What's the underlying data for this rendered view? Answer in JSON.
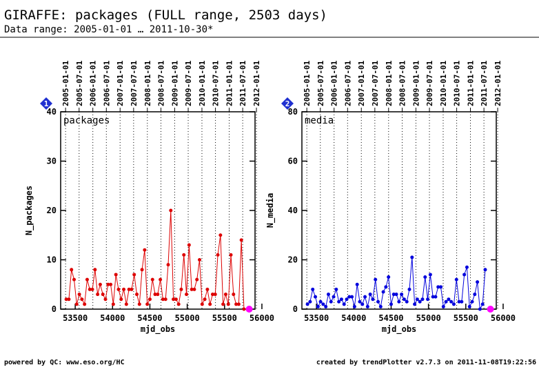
{
  "header": {
    "title": "GIRAFFE: packages (FULL range, 2503 days)",
    "subtitle": "Data range: 2005-01-01 … 2011-10-30*"
  },
  "footer": {
    "left": "powered by QC: www.eso.org/HC",
    "right": "created by trendPlotter v2.7.3 on 2011-11-08T19:22:56"
  },
  "chart_data": [
    {
      "type": "line",
      "badge": "1",
      "label": "packages",
      "xlabel": "mjd_obs",
      "ylabel": "N_packages",
      "color": "#dd0000",
      "xlim": [
        53305,
        55908
      ],
      "ylim": [
        0,
        40
      ],
      "xticks": [
        53500,
        54000,
        54500,
        55000,
        55500,
        56000
      ],
      "yticks": [
        0,
        10,
        20,
        30,
        40
      ],
      "x2ticks": [
        {
          "value": 53371,
          "label": "2005-01-01"
        },
        {
          "value": 53552,
          "label": "2005-07-01"
        },
        {
          "value": 53736,
          "label": "2006-01-01"
        },
        {
          "value": 53917,
          "label": "2006-07-01"
        },
        {
          "value": 54101,
          "label": "2007-01-01"
        },
        {
          "value": 54282,
          "label": "2007-07-01"
        },
        {
          "value": 54466,
          "label": "2008-01-01"
        },
        {
          "value": 54648,
          "label": "2008-07-01"
        },
        {
          "value": 54832,
          "label": "2009-01-01"
        },
        {
          "value": 55013,
          "label": "2009-07-01"
        },
        {
          "value": 55197,
          "label": "2010-01-01"
        },
        {
          "value": 55378,
          "label": "2010-07-01"
        },
        {
          "value": 55562,
          "label": "2011-01-01"
        },
        {
          "value": 55743,
          "label": "2011-07-01"
        },
        {
          "value": 55927,
          "label": "2012-01-01"
        }
      ],
      "x": [
        53380,
        53415,
        53450,
        53485,
        53520,
        53555,
        53590,
        53625,
        53660,
        53695,
        53730,
        53765,
        53800,
        53835,
        53870,
        53905,
        53940,
        53975,
        54010,
        54045,
        54080,
        54115,
        54150,
        54185,
        54220,
        54255,
        54290,
        54325,
        54360,
        54395,
        54430,
        54465,
        54500,
        54535,
        54570,
        54605,
        54640,
        54675,
        54710,
        54745,
        54780,
        54815,
        54850,
        54885,
        54920,
        54955,
        54990,
        55025,
        55060,
        55095,
        55130,
        55165,
        55200,
        55235,
        55270,
        55305,
        55340,
        55375,
        55410,
        55445,
        55480,
        55515,
        55550,
        55585,
        55620,
        55655,
        55690,
        55725,
        55760
      ],
      "values": [
        2,
        2,
        8,
        6,
        1,
        3,
        2,
        1,
        6,
        4,
        4,
        8,
        3,
        5,
        3,
        2,
        5,
        5,
        1,
        7,
        4,
        2,
        4,
        1,
        4,
        4,
        7,
        3,
        1,
        8,
        12,
        1,
        2,
        6,
        3,
        3,
        6,
        2,
        2,
        9,
        20,
        2,
        2,
        1,
        4,
        11,
        3,
        13,
        4,
        4,
        6,
        10,
        1,
        2,
        4,
        1,
        3,
        3,
        11,
        15,
        1,
        3,
        1,
        11,
        3,
        1,
        1,
        14,
        0
      ],
      "highlight": {
        "x": [
          55830
        ],
        "values": [
          0
        ],
        "color": "#ff00ff"
      }
    },
    {
      "type": "line",
      "badge": "2",
      "label": "media",
      "xlabel": "mjd_obs",
      "ylabel": "N_media",
      "color": "#0000dd",
      "xlim": [
        53305,
        55908
      ],
      "ylim": [
        0,
        80
      ],
      "xticks": [
        53500,
        54000,
        54500,
        55000,
        55500,
        56000
      ],
      "yticks": [
        0,
        20,
        40,
        60,
        80
      ],
      "x2ticks": [
        {
          "value": 53371,
          "label": "2005-01-01"
        },
        {
          "value": 53552,
          "label": "2005-07-01"
        },
        {
          "value": 53736,
          "label": "2006-01-01"
        },
        {
          "value": 53917,
          "label": "2006-07-01"
        },
        {
          "value": 54101,
          "label": "2007-01-01"
        },
        {
          "value": 54282,
          "label": "2007-07-01"
        },
        {
          "value": 54466,
          "label": "2008-01-01"
        },
        {
          "value": 54648,
          "label": "2008-07-01"
        },
        {
          "value": 54832,
          "label": "2009-01-01"
        },
        {
          "value": 55013,
          "label": "2009-07-01"
        },
        {
          "value": 55197,
          "label": "2010-01-01"
        },
        {
          "value": 55378,
          "label": "2010-07-01"
        },
        {
          "value": 55562,
          "label": "2011-01-01"
        },
        {
          "value": 55743,
          "label": "2011-07-01"
        },
        {
          "value": 55927,
          "label": "2012-01-01"
        }
      ],
      "x": [
        53380,
        53415,
        53450,
        53485,
        53520,
        53555,
        53590,
        53625,
        53660,
        53695,
        53730,
        53765,
        53800,
        53835,
        53870,
        53905,
        53940,
        53975,
        54010,
        54045,
        54080,
        54115,
        54150,
        54185,
        54220,
        54255,
        54290,
        54325,
        54360,
        54395,
        54430,
        54465,
        54500,
        54535,
        54570,
        54605,
        54640,
        54675,
        54710,
        54745,
        54780,
        54815,
        54850,
        54885,
        54920,
        54955,
        54990,
        55025,
        55060,
        55095,
        55130,
        55165,
        55200,
        55235,
        55270,
        55305,
        55340,
        55375,
        55410,
        55445,
        55480,
        55515,
        55550,
        55585,
        55620,
        55655,
        55690,
        55725,
        55760
      ],
      "values": [
        2,
        3,
        8,
        5,
        1,
        3,
        2,
        1,
        6,
        3,
        5,
        8,
        3,
        4,
        2,
        4,
        5,
        5,
        1,
        10,
        3,
        2,
        5,
        1,
        6,
        4,
        12,
        3,
        1,
        7,
        9,
        13,
        2,
        6,
        6,
        3,
        6,
        4,
        3,
        8,
        21,
        2,
        4,
        3,
        4,
        13,
        4,
        14,
        5,
        5,
        9,
        9,
        1,
        3,
        4,
        3,
        2,
        12,
        3,
        3,
        14,
        17,
        1,
        3,
        6,
        11,
        0,
        2,
        16
      ],
      "highlight": {
        "x": [
          55830
        ],
        "values": [
          0
        ],
        "color": "#ff00ff"
      }
    }
  ]
}
